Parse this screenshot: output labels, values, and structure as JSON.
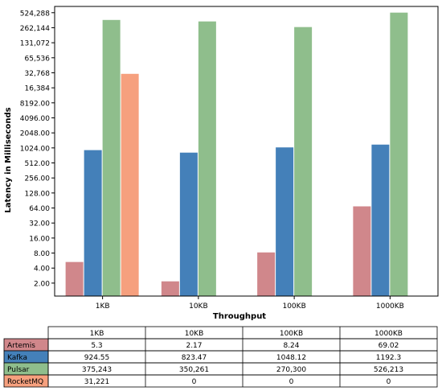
{
  "chart_data": {
    "type": "bar",
    "xlabel": "Throughput",
    "ylabel": "Latency in Milliseconds",
    "yscale": "log2",
    "ylim": [
      1.1,
      700000
    ],
    "yticks": [
      {
        "value": 2,
        "label": "2.00"
      },
      {
        "value": 4,
        "label": "4.00"
      },
      {
        "value": 8,
        "label": "8.00"
      },
      {
        "value": 16,
        "label": "16.00"
      },
      {
        "value": 32,
        "label": "32.00"
      },
      {
        "value": 64,
        "label": "64.00"
      },
      {
        "value": 128,
        "label": "128.00"
      },
      {
        "value": 256,
        "label": "256.00"
      },
      {
        "value": 512,
        "label": "512.00"
      },
      {
        "value": 1024,
        "label": "1024.00"
      },
      {
        "value": 2048,
        "label": "2048.00"
      },
      {
        "value": 4096,
        "label": "4096.00"
      },
      {
        "value": 8192,
        "label": "8192.00"
      },
      {
        "value": 16384,
        "label": "16,384"
      },
      {
        "value": 32768,
        "label": "32,768"
      },
      {
        "value": 65536,
        "label": "65,536"
      },
      {
        "value": 131072,
        "label": "131,072"
      },
      {
        "value": 262144,
        "label": "262,144"
      },
      {
        "value": 524288,
        "label": "524,288"
      }
    ],
    "categories": [
      "1KB",
      "10KB",
      "100KB",
      "1000KB"
    ],
    "series": [
      {
        "name": "Artemis",
        "color": "#d0878b",
        "values": [
          5.3,
          2.17,
          8.24,
          69.02
        ],
        "labels": [
          "5.3",
          "2.17",
          "8.24",
          "69.02"
        ]
      },
      {
        "name": "Kafka",
        "color": "#4480b9",
        "values": [
          924.55,
          823.47,
          1048.12,
          1192.3
        ],
        "labels": [
          "924.55",
          "823.47",
          "1048.12",
          "1192.3"
        ]
      },
      {
        "name": "Pulsar",
        "color": "#8fbe8c",
        "values": [
          375243,
          350261,
          270300,
          526213
        ],
        "labels": [
          "375,243",
          "350,261",
          "270,300",
          "526,213"
        ]
      },
      {
        "name": "RocketMQ",
        "color": "#f6a07e",
        "values": [
          31221,
          0,
          0,
          0
        ],
        "labels": [
          "31,221",
          "0",
          "0",
          "0"
        ]
      }
    ],
    "grid": false,
    "legend": "table-below"
  }
}
